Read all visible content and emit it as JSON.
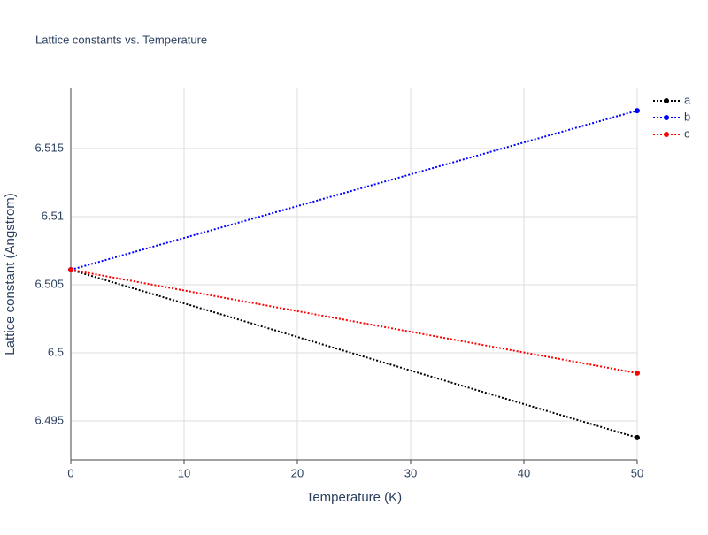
{
  "chart_data": {
    "type": "line",
    "title": "Lattice constants vs. Temperature",
    "x_label": "Temperature (K)",
    "y_label": "Lattice constant (Angstrom)",
    "x": [
      0,
      50
    ],
    "series": [
      {
        "name": "a",
        "color": "#000000",
        "values": [
          6.5061,
          6.49377
        ]
      },
      {
        "name": "b",
        "color": "#0000ff",
        "values": [
          6.5061,
          6.51779
        ]
      },
      {
        "name": "c",
        "color": "#ff0000",
        "values": [
          6.5061,
          6.49851
        ]
      }
    ],
    "xlim": [
      0,
      50
    ],
    "xticks": [
      0,
      10,
      20,
      30,
      40,
      50
    ],
    "ylim": [
      6.49214,
      6.51942
    ],
    "yticks": [
      6.495,
      6.5,
      6.505,
      6.51,
      6.515
    ],
    "grid": true,
    "legend": "right"
  }
}
